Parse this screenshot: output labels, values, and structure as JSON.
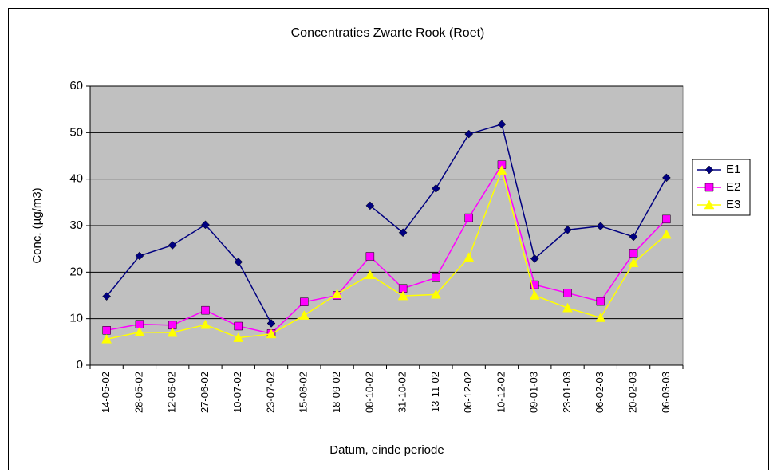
{
  "chart_data": {
    "type": "line",
    "title": "Concentraties Zwarte Rook (Roet)",
    "x_label": "Datum, einde periode",
    "y_label": "Conc. (µg/m3)",
    "categories": [
      "14-05-02",
      "28-05-02",
      "12-06-02",
      "27-06-02",
      "10-07-02",
      "23-07-02",
      "15-08-02",
      "18-09-02",
      "08-10-02",
      "31-10-02",
      "13-11-02",
      "06-12-02",
      "10-12-02",
      "09-01-03",
      "23-01-03",
      "06-02-03",
      "20-02-03",
      "06-03-03"
    ],
    "series": [
      {
        "name": "E1",
        "color": "#000080",
        "marker": "diamond",
        "values": [
          14.8,
          23.5,
          25.8,
          30.2,
          22.2,
          9.0,
          null,
          null,
          34.3,
          28.5,
          38.0,
          49.7,
          51.8,
          22.9,
          29.1,
          29.9,
          27.6,
          40.3
        ]
      },
      {
        "name": "E2",
        "color": "#ff00ff",
        "marker": "square",
        "values": [
          7.5,
          8.8,
          8.6,
          11.8,
          8.4,
          6.8,
          13.6,
          15.0,
          23.4,
          16.5,
          18.8,
          31.7,
          43.1,
          17.3,
          15.5,
          13.7,
          24.1,
          31.4
        ]
      },
      {
        "name": "E3",
        "color": "#ffff00",
        "marker": "triangle",
        "values": [
          5.6,
          7.1,
          7.0,
          8.7,
          5.9,
          6.7,
          10.7,
          15.3,
          19.4,
          14.9,
          15.2,
          23.2,
          41.9,
          15.0,
          12.3,
          10.2,
          22.0,
          28.1
        ]
      }
    ],
    "ylim": [
      0,
      60
    ],
    "yticks": [
      0,
      10,
      20,
      30,
      40,
      50,
      60
    ],
    "grid": true,
    "legend": "right",
    "plot_background": "#c0c0c0"
  }
}
